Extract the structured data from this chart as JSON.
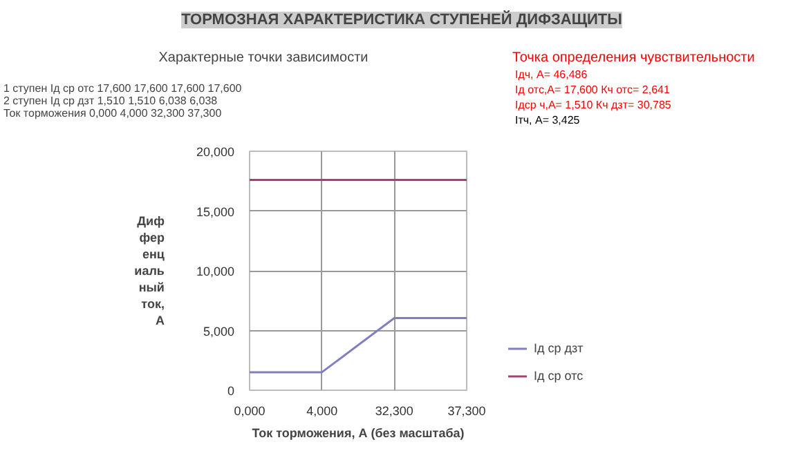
{
  "chart_data": {
    "type": "line",
    "title": "ТОРМОЗНАЯ ХАРАКТЕРИСТИКА СТУПЕНЕЙ ДИФЗАЩИТЫ",
    "xlabel": "Ток торможения, А (без масштаба)",
    "ylabel": "Диф\nфер\nенц\nиаль\nный\nток,\nА",
    "categories": [
      "0,000",
      "4,000",
      "32,300",
      "37,300"
    ],
    "series": [
      {
        "name": "Iд ср дзт",
        "color": "#7f7fbf",
        "values": [
          1.51,
          1.51,
          6.038,
          6.038
        ]
      },
      {
        "name": "Iд ср отс",
        "color": "#a8406f",
        "values": [
          17.6,
          17.6,
          17.6,
          17.6
        ]
      }
    ],
    "ylim": [
      0,
      20
    ],
    "yticks": [
      0,
      {
        "value": 5,
        "label": "5,000"
      },
      {
        "value": 10,
        "label": "10,000"
      },
      {
        "value": 15,
        "label": "15,000"
      },
      {
        "value": 20,
        "label": "20,000"
      }
    ],
    "grid": true,
    "legend": "right",
    "marker": "none",
    "line_style": "solid",
    "annotations": [
      "Характерные точки зависимости",
      "1 ступен  Iд ср отс   17,600   17,600   17,600   17,600",
      "2 ступен  Iд ср дзт   1,510   1,510   6,038   6,038",
      "Ток торможения   0,000   4,000   32,300   37,300",
      "Точка определения чувствительности",
      "Iдч, А=  46,486",
      "Iд отс,А=  17,600     Кч отс=  2,641",
      "Iдср ч,А=  1,510     Кч дзт=  30,785",
      "Iтч, А=  3,425"
    ]
  }
}
